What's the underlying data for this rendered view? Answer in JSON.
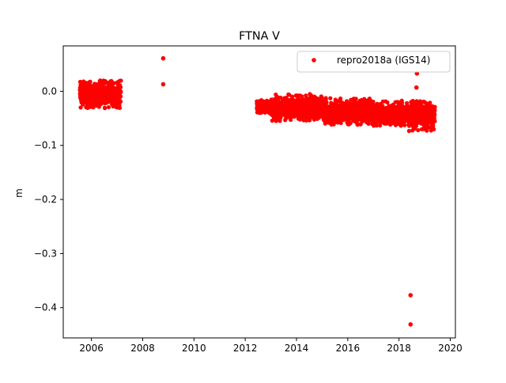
{
  "chart_data": {
    "type": "scatter",
    "title": "FTNA V",
    "xlabel": "",
    "ylabel": "m",
    "xlim": [
      2004.9,
      2020.2
    ],
    "ylim": [
      -0.456,
      0.084
    ],
    "xticks": [
      2006,
      2008,
      2010,
      2012,
      2014,
      2016,
      2018,
      2020
    ],
    "xtick_labels": [
      "2006",
      "2008",
      "2010",
      "2012",
      "2014",
      "2016",
      "2018",
      "2020"
    ],
    "yticks": [
      0.0,
      -0.1,
      -0.2,
      -0.3,
      -0.4
    ],
    "ytick_labels": [
      "0.0",
      "−0.1",
      "−0.2",
      "−0.3",
      "−0.4"
    ],
    "grid": false,
    "legend_position": "top-right",
    "marker_color": "#ff0000",
    "series": [
      {
        "name": "repro2018a (IGS14)",
        "color": "#ff0000",
        "dense_segments": [
          {
            "x_start": 2005.55,
            "x_end": 2007.15,
            "y_center": -0.005,
            "y_spread": 0.012,
            "y_min": -0.032,
            "y_max": 0.02
          },
          {
            "x_start": 2012.45,
            "x_end": 2013.0,
            "y_center": -0.028,
            "y_spread": 0.006,
            "y_min": -0.04,
            "y_max": -0.015
          },
          {
            "x_start": 2013.0,
            "x_end": 2015.0,
            "y_center": -0.03,
            "y_spread": 0.01,
            "y_min": -0.055,
            "y_max": -0.005
          },
          {
            "x_start": 2015.0,
            "x_end": 2017.0,
            "y_center": -0.038,
            "y_spread": 0.01,
            "y_min": -0.068,
            "y_max": -0.012
          },
          {
            "x_start": 2017.0,
            "x_end": 2018.35,
            "y_center": -0.042,
            "y_spread": 0.01,
            "y_min": -0.065,
            "y_max": -0.015
          },
          {
            "x_start": 2018.35,
            "x_end": 2019.4,
            "y_center": -0.045,
            "y_spread": 0.012,
            "y_min": -0.08,
            "y_max": -0.015
          }
        ],
        "outliers": [
          {
            "x": 2008.8,
            "y": 0.061
          },
          {
            "x": 2008.8,
            "y": 0.013
          },
          {
            "x": 2018.7,
            "y": 0.033
          },
          {
            "x": 2018.68,
            "y": 0.007
          },
          {
            "x": 2018.45,
            "y": -0.377
          },
          {
            "x": 2018.45,
            "y": -0.431
          }
        ]
      }
    ]
  }
}
